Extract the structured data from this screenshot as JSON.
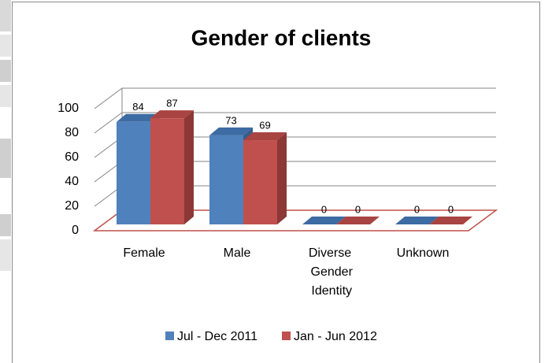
{
  "chart_data": {
    "type": "bar3d",
    "title": "Gender of clients",
    "categories": [
      "Female",
      "Male",
      "Diverse Gender Identity",
      "Unknown"
    ],
    "series": [
      {
        "name": "Jul - Dec 2011",
        "color": "#4f81bd",
        "values": [
          84,
          73,
          0,
          0
        ]
      },
      {
        "name": "Jan - Jun 2012",
        "color": "#c0504d",
        "values": [
          87,
          69,
          0,
          0
        ]
      }
    ],
    "ylim": [
      0,
      100
    ],
    "yticks": [
      0,
      20,
      40,
      60,
      80,
      100
    ],
    "grid": true,
    "legend": "bottom"
  }
}
